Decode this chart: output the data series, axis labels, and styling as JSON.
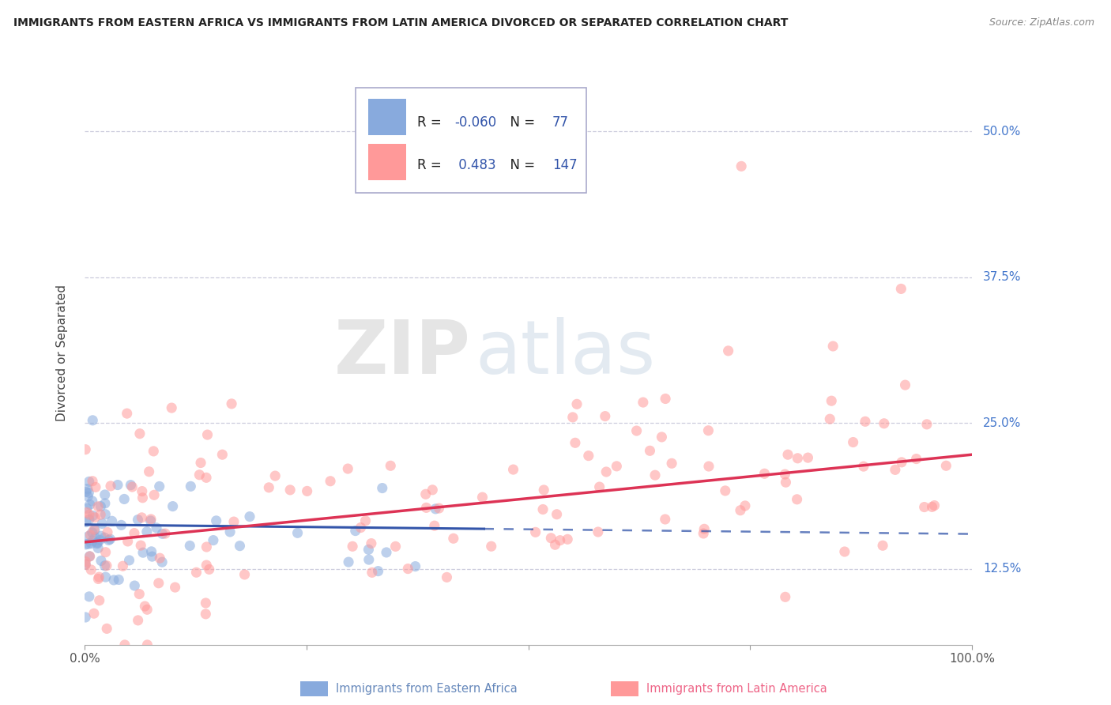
{
  "title": "IMMIGRANTS FROM EASTERN AFRICA VS IMMIGRANTS FROM LATIN AMERICA DIVORCED OR SEPARATED CORRELATION CHART",
  "source": "Source: ZipAtlas.com",
  "ylabel": "Divorced or Separated",
  "ytick_labels": [
    "12.5%",
    "25.0%",
    "37.5%",
    "50.0%"
  ],
  "ytick_values": [
    0.125,
    0.25,
    0.375,
    0.5
  ],
  "legend_label1": "Immigrants from Eastern Africa",
  "legend_label2": "Immigrants from Latin America",
  "R1": -0.06,
  "N1": 77,
  "R2": 0.483,
  "N2": 147,
  "color_blue": "#88AADD",
  "color_pink": "#FF9999",
  "color_blue_line": "#3355AA",
  "color_pink_line": "#DD3355",
  "watermark_zip": "ZIP",
  "watermark_atlas": "atlas",
  "ylim_min": 0.06,
  "ylim_max": 0.56,
  "xlim_min": 0.0,
  "xlim_max": 1.0,
  "blue_regression_intercept": 0.163,
  "blue_regression_slope": -0.008,
  "pink_regression_intercept": 0.148,
  "pink_regression_slope": 0.075
}
